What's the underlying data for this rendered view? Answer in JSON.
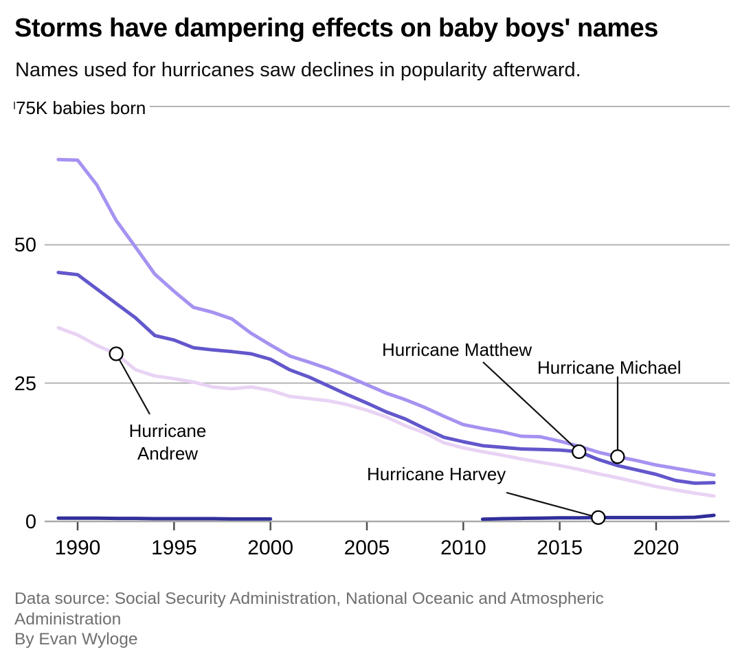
{
  "header": {
    "title": "Storms have dampering effects on baby boys' names",
    "subtitle": "Names used for hurricanes saw declines in popularity afterward."
  },
  "chart_data": {
    "type": "line",
    "title": "Storms have dampering effects on baby boys' names",
    "subtitle": "Names used for hurricanes saw declines in popularity afterward.",
    "units": "thousands of babies born per year",
    "grid": true,
    "legend_position": "none",
    "xlabel": "",
    "ylabel": "babies born",
    "ylim": [
      0,
      75
    ],
    "xlim": [
      1989,
      2023
    ],
    "x_axis": {
      "ticks": [
        1990,
        1995,
        2000,
        2005,
        2010,
        2015,
        2020
      ]
    },
    "y_axis": {
      "ticks": [
        {
          "value": 0,
          "label": "0"
        },
        {
          "value": 25,
          "label": "25"
        },
        {
          "value": 50,
          "label": "50"
        },
        {
          "value": 75,
          "label": "75K babies born"
        }
      ]
    },
    "years": [
      1989,
      1990,
      1991,
      1992,
      1993,
      1994,
      1995,
      1996,
      1997,
      1998,
      1999,
      2000,
      2001,
      2002,
      2003,
      2004,
      2005,
      2006,
      2007,
      2008,
      2009,
      2010,
      2011,
      2012,
      2013,
      2014,
      2015,
      2016,
      2017,
      2018,
      2019,
      2020,
      2021,
      2022,
      2023
    ],
    "series": [
      {
        "id": "andrew",
        "name": "Andrew",
        "color": "#e9d3f4",
        "values": [
          35.0,
          33.7,
          31.8,
          30.3,
          27.4,
          26.3,
          25.8,
          25.2,
          24.3,
          24.0,
          24.3,
          23.7,
          22.6,
          22.2,
          21.8,
          21.1,
          20.1,
          18.9,
          17.3,
          16.0,
          14.2,
          13.3,
          12.6,
          12.0,
          11.3,
          10.7,
          10.1,
          9.4,
          8.6,
          7.9,
          7.1,
          6.3,
          5.7,
          5.1,
          4.6
        ]
      },
      {
        "id": "michael",
        "name": "Michael",
        "color": "#a692f1",
        "values": [
          65.4,
          65.3,
          60.8,
          54.4,
          49.6,
          44.7,
          41.6,
          38.7,
          37.8,
          36.6,
          34.0,
          31.9,
          29.9,
          28.8,
          27.6,
          26.2,
          24.7,
          23.2,
          22.0,
          20.6,
          19.0,
          17.5,
          16.8,
          16.2,
          15.4,
          15.3,
          14.5,
          13.6,
          12.5,
          11.7,
          11.0,
          10.2,
          9.6,
          9.0,
          8.4
        ]
      },
      {
        "id": "matthew",
        "name": "Matthew",
        "color": "#6257cb",
        "values": [
          45.0,
          44.6,
          42.0,
          39.4,
          36.8,
          33.6,
          32.8,
          31.4,
          31.0,
          30.7,
          30.3,
          29.3,
          27.4,
          26.1,
          24.5,
          22.9,
          21.4,
          19.8,
          18.5,
          16.8,
          15.2,
          14.4,
          13.7,
          13.4,
          13.1,
          13.0,
          12.9,
          12.6,
          11.2,
          10.1,
          9.3,
          8.5,
          7.4,
          6.9,
          7.0
        ]
      },
      {
        "id": "harvey",
        "name": "Harvey",
        "color": "#302e99",
        "values": [
          0.6,
          0.6,
          0.6,
          0.55,
          0.55,
          0.5,
          0.5,
          0.5,
          0.5,
          0.45,
          0.45,
          0.45,
          null,
          null,
          null,
          null,
          null,
          null,
          null,
          null,
          null,
          null,
          0.4,
          0.5,
          0.55,
          0.6,
          0.65,
          0.65,
          0.7,
          0.7,
          0.7,
          0.7,
          0.7,
          0.75,
          1.1
        ]
      }
    ],
    "annotations": [
      {
        "id": "andrew",
        "label": "Hurricane Andrew",
        "series": "andrew",
        "year": 1992
      },
      {
        "id": "matthew",
        "label": "Hurricane Matthew",
        "series": "matthew",
        "year": 2016
      },
      {
        "id": "michael",
        "label": "Hurricane Michael",
        "series": "michael",
        "year": 2018
      },
      {
        "id": "harvey",
        "label": "Hurricane Harvey",
        "series": "harvey",
        "year": 2017
      }
    ]
  },
  "footer": {
    "source": "Data source: Social Security Administration, National Oceanic and Atmospheric Administration",
    "byline": "By Evan Wyloge"
  }
}
